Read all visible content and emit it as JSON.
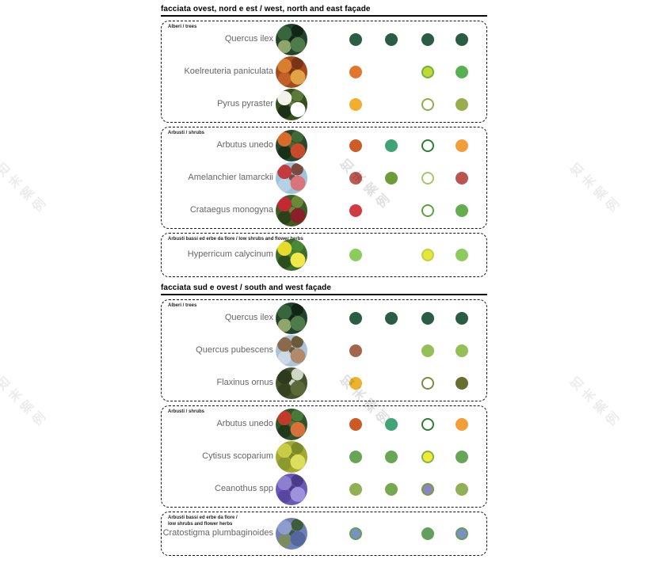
{
  "watermark": {
    "text": "知末案例"
  },
  "sections": [
    {
      "header": "facciata ovest, nord e est / west, north and east façade",
      "groups": [
        {
          "label": "Alberi / trees",
          "rows": [
            {
              "name": "Quercus ilex",
              "photo_name": "quercus-ilex-photo",
              "photo_colors": [
                "#24422c",
                "#38663c",
                "#122415",
                "#4f7a4a",
                "#8fa66b"
              ],
              "dots": [
                {
                  "fill": "#2b5c44"
                },
                {
                  "fill": "#2b5c44"
                },
                {
                  "fill": "#2b5c44"
                },
                {
                  "fill": "#2b5c44"
                }
              ]
            },
            {
              "name": "Koelreuteria paniculata",
              "photo_name": "koelreuteria-paniculata-photo",
              "photo_colors": [
                "#a34a1e",
                "#d97e2f",
                "#7a3316",
                "#e0a345",
                "#c2602a"
              ],
              "dots": [
                {
                  "fill": "#e2762c"
                },
                null,
                {
                  "fill": "#c3d932",
                  "ring": "#6cb33e"
                },
                {
                  "fill": "#56b154"
                }
              ]
            },
            {
              "name": "Pyrus pyraster",
              "photo_name": "pyrus-pyraster-photo",
              "photo_colors": [
                "#33511f",
                "#f2f2ea",
                "#5b7a3a",
                "#ffffff",
                "#1d2f16"
              ],
              "dots": [
                {
                  "fill": "#f2ae2f"
                },
                null,
                {
                  "fill": "#ffffff",
                  "ring": "#8fad52"
                },
                {
                  "fill": "#98ad4b"
                }
              ]
            }
          ]
        },
        {
          "label": "Arbusti / shrubs",
          "rows": [
            {
              "name": "Arbutus unedo",
              "photo_name": "arbutus-unedo-photo",
              "photo_colors": [
                "#28462a",
                "#d96a2a",
                "#3f6a35",
                "#c94a2a",
                "#173017"
              ],
              "dots": [
                {
                  "fill": "#cd5c28"
                },
                {
                  "fill": "#3fa377"
                },
                {
                  "fill": "#ffffff",
                  "ring": "#2e7d32"
                },
                {
                  "fill": "#f49d3c"
                }
              ]
            },
            {
              "name": "Amelanchier lamarckii",
              "photo_name": "amelanchier-lamarckii-photo",
              "photo_colors": [
                "#9fc3d9",
                "#c23b3f",
                "#7a4a3a",
                "#d9747a",
                "#b5d2e5"
              ],
              "dots": [
                {
                  "fill": "#c05a55"
                },
                {
                  "fill": "#6d9c39"
                },
                {
                  "fill": "#ffffff",
                  "ring": "#a5c86b"
                },
                {
                  "fill": "#bc5450"
                }
              ]
            },
            {
              "name": "Crataegus monogyna",
              "photo_name": "crataegus-monogyna-photo",
              "photo_colors": [
                "#3d5c26",
                "#c12a35",
                "#6a8a3a",
                "#8a1f2a",
                "#2a421a"
              ],
              "dots": [
                {
                  "fill": "#d23a41"
                },
                null,
                {
                  "fill": "#ffffff",
                  "ring": "#5aa342"
                },
                {
                  "fill": "#64ad4c"
                }
              ]
            }
          ]
        },
        {
          "label": "Arbusti bassi ed erbe da fiore / low shrubs and flower herbs",
          "rows": [
            {
              "name": "Hyperricum calycinum",
              "photo_name": "hyperricum-calycinum-photo",
              "photo_colors": [
                "#3d6e2b",
                "#e8d92a",
                "#4a8a35",
                "#f2e84a",
                "#2a4f1d"
              ],
              "dots": [
                {
                  "fill": "#8ccb5e"
                },
                null,
                {
                  "fill": "#e7e43a",
                  "ring": "#b9d44b"
                },
                {
                  "fill": "#8ccb5e"
                }
              ]
            }
          ]
        }
      ]
    },
    {
      "header": "facciata sud e ovest / south and west façade",
      "groups": [
        {
          "label": "Alberi / trees",
          "rows": [
            {
              "name": "Quercus ilex",
              "photo_name": "quercus-ilex-photo",
              "photo_colors": [
                "#24422c",
                "#38663c",
                "#122415",
                "#4f7a4a",
                "#8fa66b"
              ],
              "dots": [
                {
                  "fill": "#2b5c44"
                },
                {
                  "fill": "#2b5c44"
                },
                {
                  "fill": "#2b5c44"
                },
                {
                  "fill": "#2b5c44"
                }
              ]
            },
            {
              "name": "Quercus pubescens",
              "photo_name": "quercus-pubescens-photo",
              "photo_colors": [
                "#a9c4dc",
                "#8a6a4a",
                "#6a5a3a",
                "#b08a6a",
                "#cdd9e5"
              ],
              "dots": [
                {
                  "fill": "#a2674a"
                },
                null,
                {
                  "fill": "#95bf57"
                },
                {
                  "fill": "#95bf57"
                }
              ]
            },
            {
              "name": "Flaxinus ornus",
              "photo_name": "flaxinus-ornus-photo",
              "photo_colors": [
                "#46522e",
                "#2e3a1e",
                "#cfd6c2",
                "#5c6a3a",
                "#36421f"
              ],
              "dots": [
                {
                  "fill": "#edb32c"
                },
                null,
                {
                  "fill": "#ffffff",
                  "ring": "#7d8a3a"
                },
                {
                  "fill": "#686e2d"
                }
              ]
            }
          ]
        },
        {
          "label": "Arbusti / shrubs",
          "rows": [
            {
              "name": "Arbutus unedo",
              "photo_name": "arbutus-unedo-photo",
              "photo_colors": [
                "#2f5429",
                "#c13a2a",
                "#477a38",
                "#d9703a",
                "#1e3a1a"
              ],
              "dots": [
                {
                  "fill": "#cb5a25"
                },
                {
                  "fill": "#42a377"
                },
                {
                  "fill": "#ffffff",
                  "ring": "#2e7d32"
                },
                {
                  "fill": "#f59d38"
                }
              ]
            },
            {
              "name": "Cytisus scoparium",
              "photo_name": "cytisus-scoparium-photo",
              "photo_colors": [
                "#a3a832",
                "#c9cc48",
                "#7a8a28",
                "#dede5e",
                "#8a9a2e"
              ],
              "dots": [
                {
                  "fill": "#67a557"
                },
                {
                  "fill": "#67a557"
                },
                {
                  "fill": "#f2e936",
                  "ring": "#7ab648"
                },
                {
                  "fill": "#67a557"
                }
              ]
            },
            {
              "name": "Ceanothus spp",
              "photo_name": "ceanothus-spp-photo",
              "photo_colors": [
                "#6a5ab5",
                "#8d7fd0",
                "#4a3a8a",
                "#9f92dd",
                "#5747a3"
              ],
              "dots": [
                {
                  "fill": "#8fb054"
                },
                {
                  "fill": "#76a94f"
                },
                {
                  "fill": "#8b86c4",
                  "ring": "#7a9a40"
                },
                {
                  "fill": "#8fb054"
                }
              ]
            }
          ]
        },
        {
          "label": "Arbusti bassi ed erbe da fiore /\nlow shrubs and flower herbs",
          "rows": [
            {
              "name": "Cratostigma plumbaginoides",
              "photo_name": "cratostigma-plumbaginoides-photo",
              "photo_colors": [
                "#6f7fb8",
                "#8d9ccc",
                "#3f5c3a",
                "#53679e",
                "#7d8c5e"
              ],
              "dots": [
                {
                  "fill": "#7e8fc7",
                  "ring": "#5fa050"
                },
                null,
                {
                  "fill": "#63a05e"
                },
                {
                  "fill": "#7e8fc7",
                  "ring": "#5fa050"
                }
              ]
            }
          ]
        }
      ]
    }
  ]
}
